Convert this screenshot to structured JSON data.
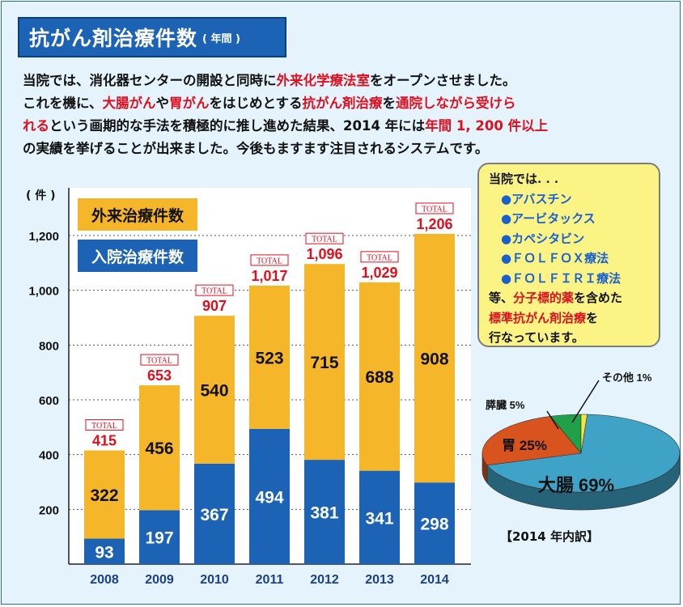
{
  "title": {
    "main": "抗がん剤治療件数",
    "sub": "( 年間 )"
  },
  "intro": {
    "line1": [
      {
        "t": "当院では、消化器センターの開設と同時に",
        "hl": false
      },
      {
        "t": "外来化学療法室",
        "hl": true
      },
      {
        "t": "をオープンさせました。",
        "hl": false
      }
    ],
    "line2": [
      {
        "t": "これを機に、",
        "hl": false
      },
      {
        "t": "大腸がん",
        "hl": true
      },
      {
        "t": "や",
        "hl": false
      },
      {
        "t": "胃がん",
        "hl": true
      },
      {
        "t": "をはじめとする",
        "hl": false
      },
      {
        "t": "抗がん剤治療",
        "hl": true
      },
      {
        "t": "を",
        "hl": false
      },
      {
        "t": "通院しながら受けら",
        "hl": true
      }
    ],
    "line3": [
      {
        "t": "れる",
        "hl": true
      },
      {
        "t": "という画期的な手法を積極的に推し進めた結果、2014 年には",
        "hl": false
      },
      {
        "t": "年間 1, 200 件以上",
        "hl": true
      }
    ],
    "line4": [
      {
        "t": "の実績を挙げることが出来ました。今後もますます注目されるシステムです。",
        "hl": false
      }
    ]
  },
  "chart_data": [
    {
      "type": "bar",
      "stacked": true,
      "unit_label": "( 件 )",
      "categories": [
        "2008",
        "2009",
        "2010",
        "2011",
        "2012",
        "2013",
        "2014"
      ],
      "series": [
        {
          "name": "入院治療件数",
          "values": [
            93,
            197,
            367,
            494,
            381,
            341,
            298
          ],
          "color": "#1c63b5"
        },
        {
          "name": "外来治療件数",
          "values": [
            322,
            456,
            540,
            523,
            715,
            688,
            908
          ],
          "color": "#f6b62a"
        }
      ],
      "totals": [
        415,
        653,
        907,
        1017,
        1096,
        1029,
        1206
      ],
      "total_tag": "TOTAL",
      "total_labels": [
        "415",
        "653",
        "907",
        "1,017",
        "1,096",
        "1,029",
        "1,206"
      ],
      "yticks": [
        "200",
        "400",
        "600",
        "800",
        "1,000",
        "1,200"
      ],
      "ytick_values": [
        200,
        400,
        600,
        800,
        1000,
        1200
      ],
      "ylim": [
        0,
        1300
      ],
      "grid": true,
      "legend_placement": "top-left"
    },
    {
      "type": "pie",
      "title": "【2014 年内訳】",
      "slices": [
        {
          "label": "大腸",
          "pct_label": "69%",
          "value": 69,
          "color": "#3fa3c8"
        },
        {
          "label": "胃",
          "pct_label": "25%",
          "value": 25,
          "color": "#d9531e"
        },
        {
          "label": "膵臓",
          "pct_label": "5%",
          "value": 5,
          "color": "#21a04a"
        },
        {
          "label": "その他",
          "pct_label": "1%",
          "value": 1,
          "color": "#f2e63a"
        }
      ]
    }
  ],
  "info_box": {
    "heading": "当院では. . .",
    "drugs": [
      "●アバスチン",
      "●アービタックス",
      "●カペシタビン",
      "●ＦＯＬＦＯＸ療法",
      "●ＦＯＬＦＩＲＩ療法"
    ],
    "text1_pre": "等、",
    "text1_hl": "分子標的薬",
    "text1_post": "を含めた",
    "text2_hl": "標準抗がん剤治療",
    "text2_post": "を",
    "text3": "行なっています。"
  }
}
